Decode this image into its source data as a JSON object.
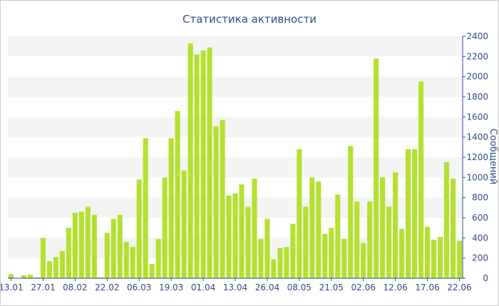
{
  "chart_data": {
    "type": "bar",
    "title": "Статистика активности",
    "xlabel": "",
    "ylabel": "Сообщений",
    "ylim": [
      0,
      2400
    ],
    "yticks": [
      0,
      200,
      400,
      600,
      800,
      1000,
      1200,
      1400,
      1600,
      1800,
      2000,
      2200,
      2400
    ],
    "y_axis_side": "right",
    "grid": "alternating horizontal bands",
    "legend": "none",
    "colors": {
      "bar": "#b5e033",
      "title": "#2e4a8a",
      "axis_text": "#2e4a8a",
      "band": "#f4f4f4"
    },
    "x_tick_labels": [
      {
        "label": "13.01",
        "index": 0
      },
      {
        "label": "27.01",
        "index": 5
      },
      {
        "label": "08.02",
        "index": 10
      },
      {
        "label": "22.02",
        "index": 15
      },
      {
        "label": "06.03",
        "index": 20
      },
      {
        "label": "19.03",
        "index": 25
      },
      {
        "label": "01.04",
        "index": 30
      },
      {
        "label": "13.04",
        "index": 35
      },
      {
        "label": "26.04",
        "index": 40
      },
      {
        "label": "08.05",
        "index": 45
      },
      {
        "label": "21.05",
        "index": 50
      },
      {
        "label": "02.06",
        "index": 55
      },
      {
        "label": "12.06",
        "index": 60
      },
      {
        "label": "17.06",
        "index": 65
      },
      {
        "label": "22.06",
        "index": 70
      }
    ],
    "values": [
      40,
      0,
      30,
      35,
      10,
      400,
      170,
      210,
      270,
      500,
      650,
      660,
      710,
      630,
      10,
      450,
      590,
      630,
      360,
      310,
      980,
      1390,
      140,
      390,
      1000,
      1390,
      1660,
      1070,
      2330,
      2220,
      2260,
      2290,
      1510,
      1570,
      820,
      840,
      930,
      710,
      990,
      390,
      590,
      190,
      300,
      310,
      540,
      1280,
      710,
      1000,
      960,
      440,
      500,
      830,
      390,
      1310,
      760,
      350,
      760,
      2180,
      1000,
      710,
      1050,
      490,
      1280,
      1280,
      1950,
      510,
      380,
      410,
      1150,
      990,
      370
    ]
  }
}
